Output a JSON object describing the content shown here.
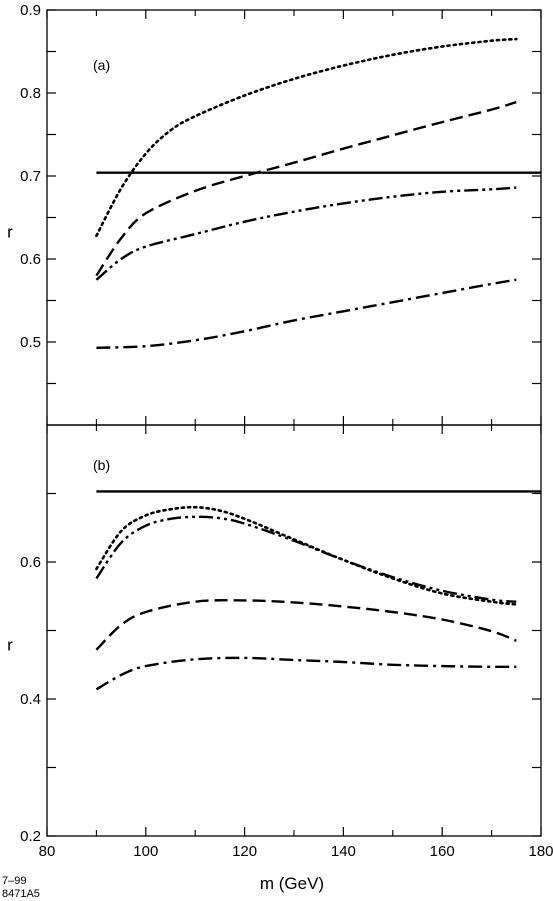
{
  "figure_id": [
    "7–99",
    "8471A5"
  ],
  "chart_data": [
    {
      "type": "line",
      "panel_label": "(a)",
      "xlabel": "m  (GeV)",
      "ylabel": "r",
      "xlim": [
        80,
        180
      ],
      "ylim": [
        0.4,
        0.9
      ],
      "xticks": [
        80,
        100,
        120,
        140,
        160,
        180
      ],
      "yticks_labeled": [
        "0.5",
        "0.6",
        "0.7",
        "0.8",
        "0.9"
      ],
      "yticks_minor": [
        0.45,
        0.55,
        0.65,
        0.75,
        0.85
      ],
      "grid": false,
      "series": [
        {
          "style": "solid",
          "x": [
            90,
            180
          ],
          "y": [
            0.704,
            0.704
          ]
        },
        {
          "style": "dotted",
          "x": [
            90,
            95,
            100,
            105,
            110,
            120,
            130,
            140,
            150,
            160,
            170,
            175
          ],
          "y": [
            0.628,
            0.685,
            0.727,
            0.755,
            0.772,
            0.797,
            0.817,
            0.833,
            0.846,
            0.856,
            0.863,
            0.865
          ]
        },
        {
          "style": "dashed",
          "x": [
            90,
            95,
            100,
            110,
            120,
            130,
            140,
            150,
            160,
            170,
            175
          ],
          "y": [
            0.58,
            0.625,
            0.655,
            0.682,
            0.7,
            0.716,
            0.733,
            0.749,
            0.765,
            0.78,
            0.789
          ]
        },
        {
          "style": "dash-dot-dot",
          "x": [
            90,
            95,
            100,
            110,
            120,
            130,
            140,
            150,
            160,
            170,
            175
          ],
          "y": [
            0.575,
            0.6,
            0.615,
            0.63,
            0.645,
            0.657,
            0.667,
            0.675,
            0.681,
            0.684,
            0.686
          ]
        },
        {
          "style": "dash-dot",
          "x": [
            90,
            100,
            110,
            120,
            130,
            140,
            150,
            160,
            170,
            175
          ],
          "y": [
            0.493,
            0.495,
            0.502,
            0.513,
            0.526,
            0.537,
            0.548,
            0.559,
            0.57,
            0.575
          ]
        }
      ]
    },
    {
      "type": "line",
      "panel_label": "(b)",
      "xlabel": "m  (GeV)",
      "ylabel": "r",
      "xlim": [
        80,
        180
      ],
      "ylim": [
        0.2,
        0.8
      ],
      "xticks": [
        80,
        100,
        120,
        140,
        160,
        180
      ],
      "xtick_labels": [
        "80",
        "100",
        "120",
        "140",
        "160",
        "180"
      ],
      "yticks_labeled": [
        "0.2",
        "0.4",
        "0.6"
      ],
      "yticks_minor": [
        0.3,
        0.5,
        0.7
      ],
      "grid": false,
      "series": [
        {
          "style": "solid",
          "x": [
            90,
            180
          ],
          "y": [
            0.703,
            0.703
          ]
        },
        {
          "style": "dotted",
          "x": [
            90,
            95,
            100,
            105,
            110,
            115,
            120,
            130,
            140,
            150,
            160,
            170,
            175
          ],
          "y": [
            0.59,
            0.645,
            0.668,
            0.677,
            0.68,
            0.675,
            0.663,
            0.633,
            0.603,
            0.576,
            0.554,
            0.542,
            0.538
          ]
        },
        {
          "style": "dash-dot-dot",
          "x": [
            90,
            95,
            100,
            105,
            110,
            115,
            120,
            130,
            140,
            150,
            160,
            170,
            175
          ],
          "y": [
            0.576,
            0.628,
            0.653,
            0.663,
            0.666,
            0.664,
            0.656,
            0.631,
            0.603,
            0.578,
            0.558,
            0.545,
            0.542
          ]
        },
        {
          "style": "dashed",
          "x": [
            90,
            95,
            100,
            110,
            120,
            130,
            140,
            150,
            160,
            170,
            175
          ],
          "y": [
            0.472,
            0.508,
            0.527,
            0.542,
            0.544,
            0.541,
            0.535,
            0.527,
            0.516,
            0.499,
            0.485
          ]
        },
        {
          "style": "dash-dot",
          "x": [
            90,
            95,
            100,
            110,
            120,
            130,
            140,
            150,
            160,
            170,
            175
          ],
          "y": [
            0.414,
            0.435,
            0.448,
            0.458,
            0.46,
            0.457,
            0.454,
            0.45,
            0.448,
            0.447,
            0.447
          ]
        }
      ]
    }
  ]
}
